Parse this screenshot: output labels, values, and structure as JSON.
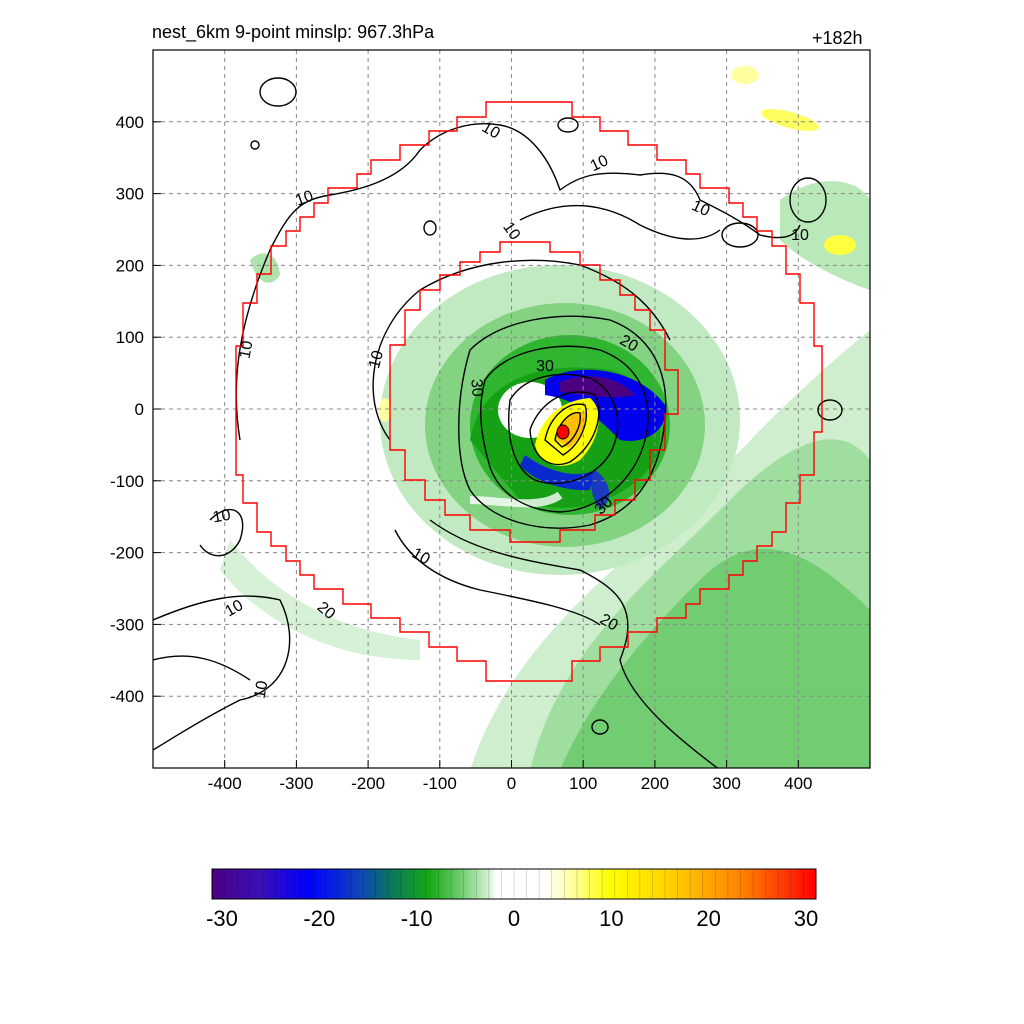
{
  "title": {
    "left": "nest_6km  9-point minslp: 967.3hPa",
    "right": "+182h"
  },
  "x_ticks": [
    "-400",
    "-300",
    "-200",
    "-100",
    "0",
    "100",
    "200",
    "300",
    "400"
  ],
  "y_ticks": [
    "400",
    "300",
    "200",
    "100",
    "0",
    "-100",
    "-200",
    "-300",
    "-400"
  ],
  "axes": {
    "xlim": [
      -500,
      500
    ],
    "ylim": [
      -500,
      500
    ],
    "grid": true,
    "grid_style": "dashed"
  },
  "contour_labels": [
    "10",
    "10",
    "10",
    "10",
    "10",
    "10",
    "10",
    "10",
    "10",
    "10",
    "10",
    "10",
    "20",
    "20",
    "20",
    "30",
    "30",
    "30"
  ],
  "colorbar": {
    "ticks": [
      "-30",
      "-20",
      "-10",
      "0",
      "10",
      "20",
      "30"
    ],
    "range": [
      -30,
      30
    ]
  },
  "colors": {
    "boundary": "#ff0000",
    "contour": "#000000",
    "center_marker": "#ff0000"
  }
}
